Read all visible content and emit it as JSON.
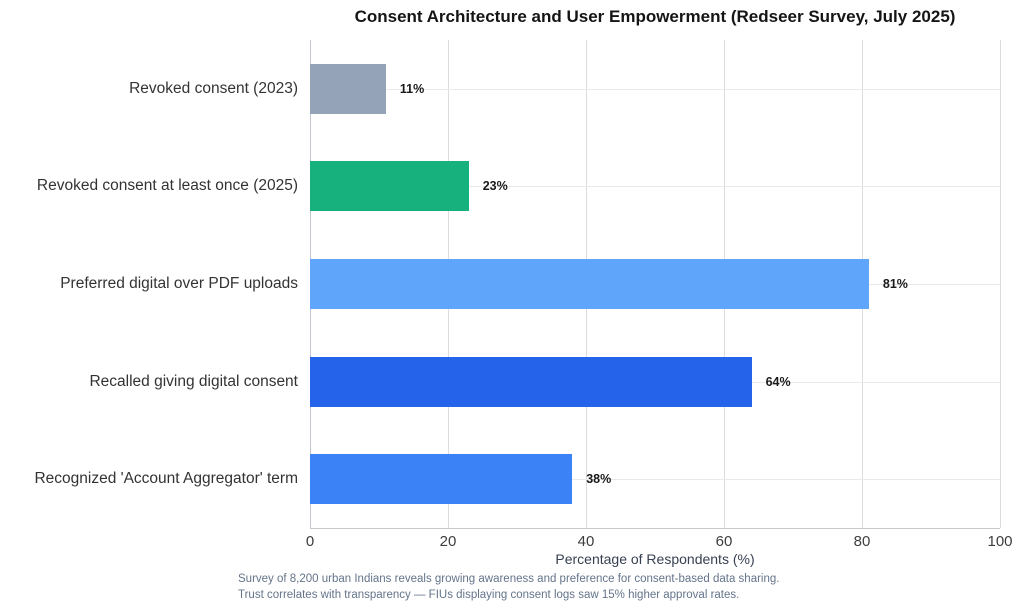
{
  "chart_data": {
    "type": "bar",
    "orientation": "horizontal",
    "title": "Consent Architecture and User Empowerment (Redseer Survey, July 2025)",
    "categories": [
      "Revoked consent (2023)",
      "Revoked consent at least once (2025)",
      "Preferred digital over PDF uploads",
      "Recalled giving digital consent",
      "Recognized 'Account Aggregator' term"
    ],
    "values": [
      11,
      23,
      81,
      64,
      38
    ],
    "value_labels": [
      "11%",
      "23%",
      "81%",
      "64%",
      "38%"
    ],
    "bar_colors": [
      "#94a3b8",
      "#16b17d",
      "#5fa5f9",
      "#2563eb",
      "#3b82f6"
    ],
    "xlabel": "Percentage of Respondents (%)",
    "xlim": [
      0,
      100
    ],
    "xticks": [
      "0",
      "20",
      "40",
      "60",
      "80",
      "100"
    ],
    "grid": true,
    "legend": "none",
    "footnote_lines": [
      "Survey of 8,200 urban Indians reveals growing awareness and preference for consent-based data sharing.",
      "Trust correlates with transparency — FIUs displaying consent logs saw 15% higher approval rates."
    ]
  }
}
